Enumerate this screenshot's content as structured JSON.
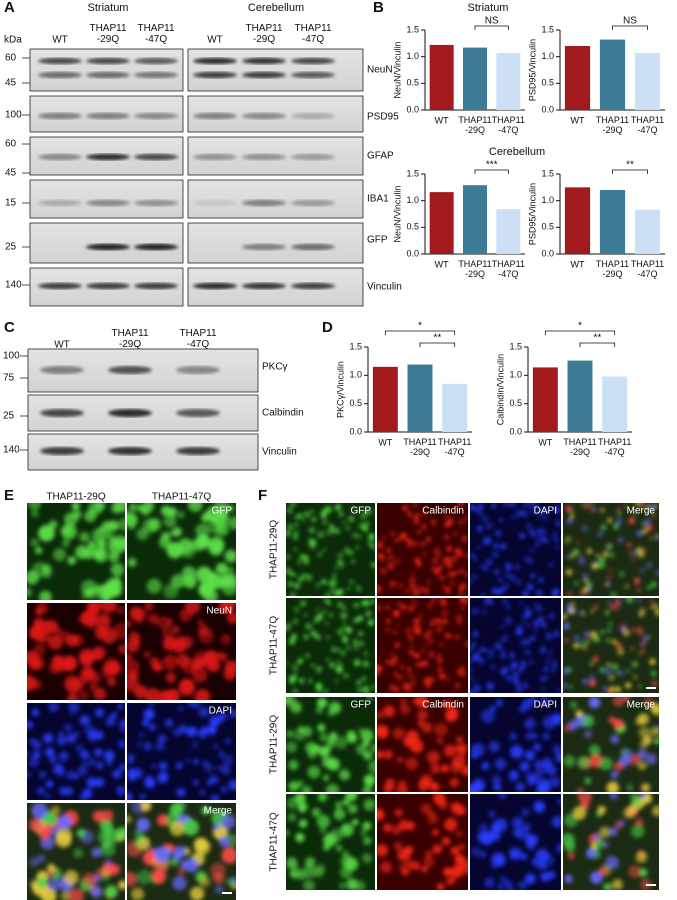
{
  "figure": {
    "panel_a": {
      "letter": "A",
      "kda": "kDa",
      "regions": [
        "Striatum",
        "Cerebellum"
      ],
      "lanes": [
        "WT",
        "THAP11\n-29Q",
        "THAP11\n-47Q"
      ],
      "rows": [
        {
          "label": "NeuN",
          "markers": [
            "60",
            "45"
          ]
        },
        {
          "label": "PSD95",
          "markers": [
            "100"
          ]
        },
        {
          "label": "GFAP",
          "markers": [
            "60",
            "45"
          ]
        },
        {
          "label": "IBA1",
          "markers": [
            "15"
          ]
        },
        {
          "label": "GFP",
          "markers": [
            "25"
          ]
        },
        {
          "label": "Vinculin",
          "markers": [
            "140"
          ]
        }
      ]
    },
    "panel_b": {
      "letter": "B",
      "titles": [
        "Striatum",
        "Cerebellum"
      ]
    },
    "panel_c": {
      "letter": "C",
      "lanes": [
        "WT",
        "THAP11\n-29Q",
        "THAP11\n-47Q"
      ],
      "rows": [
        {
          "label": "PKCγ",
          "markers": [
            "100",
            "75"
          ]
        },
        {
          "label": "Calbindin",
          "markers": [
            "25"
          ]
        },
        {
          "label": "Vinculin",
          "markers": [
            "140"
          ]
        }
      ]
    },
    "panel_d": {
      "letter": "D"
    },
    "panel_e": {
      "letter": "E",
      "columns": [
        "THAP11-29Q",
        "THAP11-47Q"
      ],
      "stains": [
        "GFP",
        "NeuN",
        "DAPI",
        "Merge"
      ]
    },
    "panel_f": {
      "letter": "F",
      "rows": [
        "THAP11-29Q",
        "THAP11-47Q",
        "THAP11-29Q",
        "THAP11-47Q"
      ],
      "stains": [
        "GFP",
        "Calbindin",
        "DAPI",
        "Merge"
      ]
    }
  },
  "chart_data": [
    {
      "type": "bar",
      "ylabel": "NeuN/Vinculin",
      "categories": [
        "WT",
        "THAP11\n-29Q",
        "THAP11\n-47Q"
      ],
      "values": [
        1.22,
        1.17,
        1.07
      ],
      "colors": [
        "#a31a1c",
        "#3b7b95",
        "#cddff4"
      ],
      "ylim": [
        0,
        1.5
      ],
      "yticks": [
        {
          "value": 0,
          "label": "0.0"
        },
        {
          "value": 0.5,
          "label": "0.5"
        },
        {
          "value": 1,
          "label": "1.0"
        },
        {
          "value": 1.5,
          "label": "1.5"
        }
      ],
      "annotations": [
        "NS"
      ]
    },
    {
      "type": "bar",
      "ylabel": "PSD95/Vinculin",
      "categories": [
        "WT",
        "THAP11\n-29Q",
        "THAP11\n-47Q"
      ],
      "values": [
        1.2,
        1.32,
        1.07
      ],
      "colors": [
        "#a31a1c",
        "#3b7b95",
        "#cddff4"
      ],
      "ylim": [
        0,
        1.5
      ],
      "yticks": [
        {
          "value": 0,
          "label": "0.0"
        },
        {
          "value": 0.5,
          "label": "0.5"
        },
        {
          "value": 1,
          "label": "1.0"
        },
        {
          "value": 1.5,
          "label": "1.5"
        }
      ],
      "annotations": [
        "NS"
      ]
    },
    {
      "type": "bar",
      "ylabel": "NeuN/Vinculin",
      "categories": [
        "WT",
        "THAP11\n-29Q",
        "THAP11\n-47Q"
      ],
      "values": [
        1.16,
        1.29,
        0.84
      ],
      "colors": [
        "#a31a1c",
        "#3b7b95",
        "#cddff4"
      ],
      "ylim": [
        0,
        1.5
      ],
      "yticks": [
        {
          "value": 0,
          "label": "0.0"
        },
        {
          "value": 0.5,
          "label": "0.5"
        },
        {
          "value": 1,
          "label": "1.0"
        },
        {
          "value": 1.5,
          "label": "1.5"
        }
      ],
      "annotations": [
        "***"
      ]
    },
    {
      "type": "bar",
      "ylabel": "PSD95/Vinculin",
      "categories": [
        "WT",
        "THAP11\n-29Q",
        "THAP11\n-47Q"
      ],
      "values": [
        1.25,
        1.2,
        0.83
      ],
      "colors": [
        "#a31a1c",
        "#3b7b95",
        "#cddff4"
      ],
      "ylim": [
        0,
        1.5
      ],
      "yticks": [
        {
          "value": 0,
          "label": "0.0"
        },
        {
          "value": 0.5,
          "label": "0.5"
        },
        {
          "value": 1,
          "label": "1.0"
        },
        {
          "value": 1.5,
          "label": "1.5"
        }
      ],
      "annotations": [
        "**"
      ]
    },
    {
      "type": "bar",
      "ylabel": "PKCγ/Vinculin",
      "categories": [
        "WT",
        "THAP11\n-29Q",
        "THAP11\n-47Q"
      ],
      "values": [
        1.15,
        1.19,
        0.85
      ],
      "colors": [
        "#a31a1c",
        "#3b7b95",
        "#cddff4"
      ],
      "ylim": [
        0,
        1.5
      ],
      "yticks": [
        {
          "value": 0,
          "label": "0.0"
        },
        {
          "value": 0.5,
          "label": "0.5"
        },
        {
          "value": 1,
          "label": "1.0"
        },
        {
          "value": 1.5,
          "label": "1.5"
        }
      ],
      "annotations": [
        "*",
        "**"
      ]
    },
    {
      "type": "bar",
      "ylabel": "Calbindin/Vinculin",
      "categories": [
        "WT",
        "THAP11\n-29Q",
        "THAP11\n-47Q"
      ],
      "values": [
        1.14,
        1.26,
        0.98
      ],
      "colors": [
        "#a31a1c",
        "#3b7b95",
        "#cddff4"
      ],
      "ylim": [
        0,
        1.5
      ],
      "yticks": [
        {
          "value": 0,
          "label": "0.0"
        },
        {
          "value": 0.5,
          "label": "0.5"
        },
        {
          "value": 1,
          "label": "1.0"
        },
        {
          "value": 1.5,
          "label": "1.5"
        }
      ],
      "annotations": [
        "*",
        "**"
      ]
    }
  ]
}
